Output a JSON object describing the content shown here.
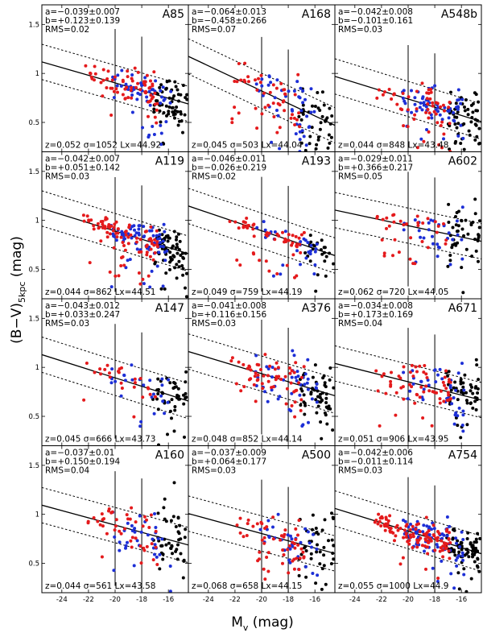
{
  "chart_data": {
    "type": "scatter",
    "layout": "4x3 grid of panels sharing axes",
    "xlabel": "M",
    "xlabel_sub": "v",
    "xlabel_unit": " (mag)",
    "ylabel": "(B−V)",
    "ylabel_sub": "5kpc",
    "ylabel_unit": " (mag)",
    "xlim": [
      -25.5,
      -14.5
    ],
    "ylim": [
      0.2,
      1.7
    ],
    "xticks": [
      -24,
      -22,
      -20,
      -18,
      -16
    ],
    "yticks": [
      0.5,
      1,
      1.5
    ],
    "xticklabels": [
      "-24",
      "-22",
      "-20",
      "-18",
      "-16"
    ],
    "yticklabels": [
      "0.5",
      "1",
      "1.5"
    ],
    "vertical_lines": [
      -20,
      -18
    ],
    "band_halfwidth": 0.18,
    "point_colors": {
      "red": "#e41a1c",
      "blue": "#1d2fd6",
      "black": "#000000"
    },
    "panels": [
      {
        "name": "A85",
        "a_text": "a=−0.039±0.007",
        "b_text": "b=+0.123±0.139",
        "rms_text": "RMS=0.02",
        "footer": "z=0.052  σ=1052  Lx=44.92",
        "slope": -0.039,
        "intercept": 0.123,
        "n_red": 70,
        "n_blue": 55,
        "n_black": 60,
        "seed": 11,
        "scatter": 0.09
      },
      {
        "name": "A168",
        "a_text": "a=−0.064±0.013",
        "b_text": "b=−0.458±0.266",
        "rms_text": "RMS=0.07",
        "footer": "z=0.045  σ=503  Lx=44.04",
        "slope": -0.064,
        "intercept": -0.458,
        "n_red": 50,
        "n_blue": 45,
        "n_black": 45,
        "seed": 23,
        "scatter": 0.15
      },
      {
        "name": "A548b",
        "a_text": "a=−0.042±0.008",
        "b_text": "b=−0.101±0.161",
        "rms_text": "RMS=0.03",
        "footer": "z=0.044  σ=848  Lx=43.48",
        "slope": -0.042,
        "intercept": -0.101,
        "n_red": 55,
        "n_blue": 60,
        "n_black": 60,
        "seed": 37,
        "scatter": 0.11
      },
      {
        "name": "A119",
        "a_text": "a=−0.042±0.007",
        "b_text": "b=+0.051±0.142",
        "rms_text": "RMS=0.03",
        "footer": "z=0.044  σ=862  Lx=44.51",
        "slope": -0.042,
        "intercept": 0.051,
        "n_red": 90,
        "n_blue": 70,
        "n_black": 70,
        "seed": 41,
        "scatter": 0.08
      },
      {
        "name": "A193",
        "a_text": "a=−0.046±0.011",
        "b_text": "b=−0.026±0.219",
        "rms_text": "RMS=0.02",
        "footer": "z=0.049  σ=759  Lx=44.19",
        "slope": -0.046,
        "intercept": -0.026,
        "n_red": 55,
        "n_blue": 30,
        "n_black": 25,
        "seed": 53,
        "scatter": 0.06
      },
      {
        "name": "A602",
        "a_text": "a=−0.029±0.011",
        "b_text": "b=+0.366±0.217",
        "rms_text": "RMS=0.05",
        "footer": "z=0.062  σ=720  Lx=44.05",
        "slope": -0.029,
        "intercept": 0.366,
        "n_red": 35,
        "n_blue": 30,
        "n_black": 45,
        "seed": 67,
        "scatter": 0.12
      },
      {
        "name": "A147",
        "a_text": "a=−0.043±0.012",
        "b_text": "b=+0.033±0.247",
        "rms_text": "RMS=0.03",
        "footer": "z=0.045  σ=666  Lx=43.73",
        "slope": -0.043,
        "intercept": 0.033,
        "n_red": 25,
        "n_blue": 25,
        "n_black": 45,
        "seed": 71,
        "scatter": 0.09
      },
      {
        "name": "A376",
        "a_text": "a=−0.041±0.008",
        "b_text": "b=+0.116±0.156",
        "rms_text": "RMS=0.03",
        "footer": "z=0.048  σ=852  Lx=44.14",
        "slope": -0.041,
        "intercept": 0.116,
        "n_red": 60,
        "n_blue": 45,
        "n_black": 55,
        "seed": 83,
        "scatter": 0.12
      },
      {
        "name": "A671",
        "a_text": "a=−0.034±0.008",
        "b_text": "b=+0.173±0.169",
        "rms_text": "RMS=0.04",
        "footer": "z=0.051  σ=906  Lx=43.95",
        "slope": -0.034,
        "intercept": 0.173,
        "n_red": 60,
        "n_blue": 40,
        "n_black": 50,
        "seed": 97,
        "scatter": 0.13
      },
      {
        "name": "A160",
        "a_text": "a=−0.037±0.01",
        "b_text": "b=+0.150±0.194",
        "rms_text": "RMS=0.04",
        "footer": "z=0.044  σ=561  Lx=43.58",
        "slope": -0.037,
        "intercept": 0.15,
        "n_red": 45,
        "n_blue": 35,
        "n_black": 45,
        "seed": 101,
        "scatter": 0.13
      },
      {
        "name": "A500",
        "a_text": "a=−0.037±0.009",
        "b_text": "b=+0.064±0.177",
        "rms_text": "RMS=0.03",
        "footer": "z=0.068  σ=658  Lx=44.15",
        "slope": -0.037,
        "intercept": 0.064,
        "n_red": 55,
        "n_blue": 35,
        "n_black": 45,
        "seed": 113,
        "scatter": 0.12
      },
      {
        "name": "A754",
        "a_text": "a=−0.042±0.006",
        "b_text": "b=−0.011±0.114",
        "rms_text": "RMS=0.03",
        "footer": "z=0.055  σ=1000  Lx=44.9",
        "slope": -0.042,
        "intercept": -0.011,
        "n_red": 110,
        "n_blue": 80,
        "n_black": 70,
        "seed": 127,
        "scatter": 0.08
      }
    ]
  }
}
